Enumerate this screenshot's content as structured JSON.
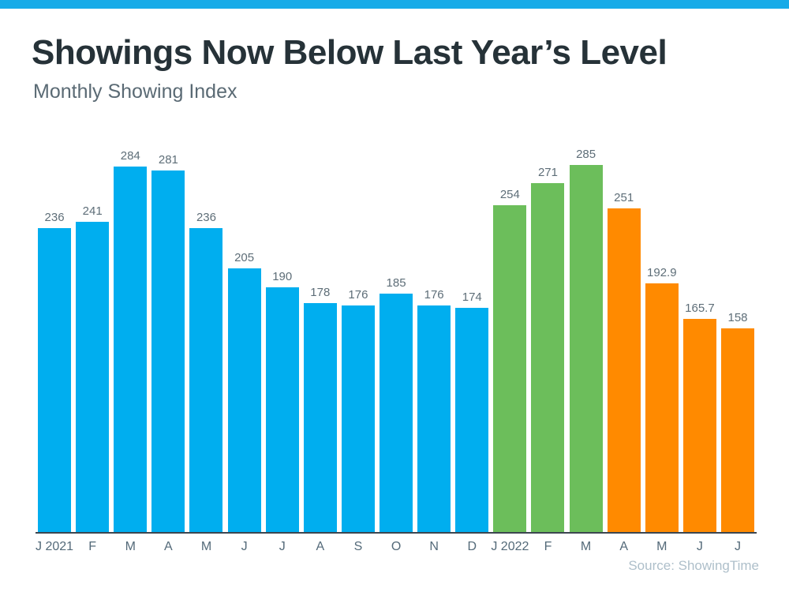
{
  "header": {
    "title": "Showings Now Below Last Year’s Level",
    "subtitle": "Monthly Showing Index"
  },
  "chart_data": {
    "type": "bar",
    "title": "Showings Now Below Last Year’s Level",
    "subtitle": "Monthly Showing Index",
    "categories": [
      "J 2021",
      "F",
      "M",
      "A",
      "M",
      "J",
      "J",
      "A",
      "S",
      "O",
      "N",
      "D",
      "J 2022",
      "F",
      "M",
      "A",
      "M",
      "J",
      "J"
    ],
    "values": [
      236,
      241,
      284,
      281,
      236,
      205,
      190,
      178,
      176,
      185,
      176,
      174,
      254,
      271,
      285,
      251,
      192.9,
      165.7,
      158
    ],
    "bar_colors": [
      "blue",
      "blue",
      "blue",
      "blue",
      "blue",
      "blue",
      "blue",
      "blue",
      "blue",
      "blue",
      "blue",
      "blue",
      "green",
      "green",
      "green",
      "orange",
      "orange",
      "orange",
      "orange"
    ],
    "colors": {
      "blue": "#00AEEF",
      "green": "#6CBE5B",
      "orange": "#FF8A00"
    },
    "xlabel": "",
    "ylabel": "",
    "ylim": [
      0,
      285
    ],
    "grid": false,
    "legend": false,
    "value_labels": true
  },
  "footer": {
    "source": "Source: ShowingTime"
  },
  "colors": {
    "top_strip": "#18ABE8",
    "title": "#263238",
    "subtitle": "#5A6A74",
    "value_label": "#5E6E78",
    "x_axis_label": "#546A79",
    "axis_line": "#3C4650",
    "source_text": "#AEBFCA",
    "background": "#FFFFFF"
  }
}
